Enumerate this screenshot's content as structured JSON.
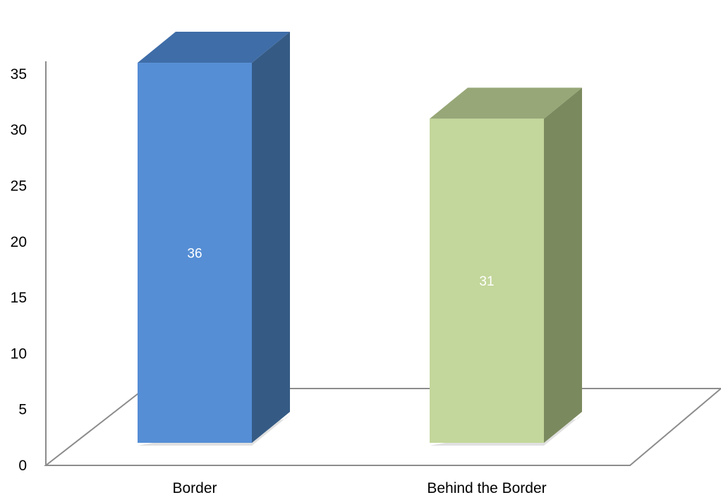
{
  "chart_data": {
    "type": "bar",
    "style": "3d-column",
    "title": "",
    "xlabel": "",
    "ylabel": "",
    "categories": [
      "Border",
      "Behind the Border"
    ],
    "values": [
      36,
      31
    ],
    "data_labels": [
      "36",
      "31"
    ],
    "y_ticks": [
      "0",
      "5",
      "10",
      "15",
      "20",
      "25",
      "30",
      "35"
    ],
    "ylim": [
      0,
      35
    ],
    "grid": false,
    "legend": "none",
    "colors": {
      "bar_front": [
        "#558ED5",
        "#C3D69B"
      ],
      "bar_side": [
        "#355B85",
        "#7B8A5E"
      ],
      "bar_top": [
        "#3F6DA8",
        "#97A777"
      ],
      "axis_line": "#8C8C8C",
      "data_label": "#FFFFFF",
      "tick_text": "#000000"
    }
  }
}
